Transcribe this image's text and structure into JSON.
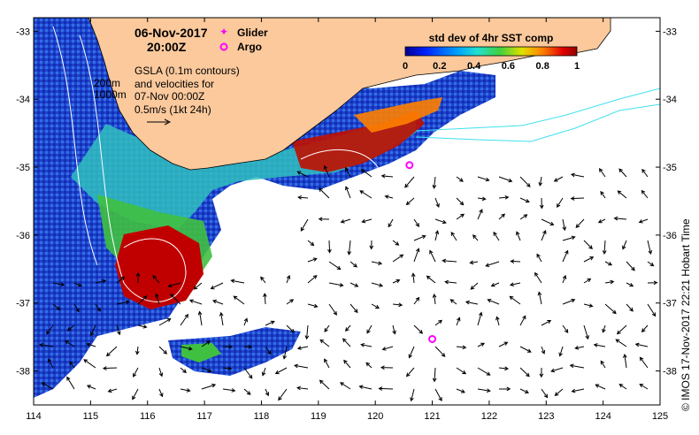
{
  "map": {
    "date_line": "06-Nov-2017",
    "time_line": "20:00Z",
    "legend_glider": "Glider",
    "legend_argo": "Argo",
    "gsla_lines": [
      "GSLA (0.1m contours)",
      "and velocities for",
      "07-Nov 00:00Z",
      "0.5m/s (1kt 24h)"
    ],
    "isobath_labels": [
      "200m",
      "1000m"
    ],
    "colorbar_title": "std dev of 4hr SST comp",
    "colorbar_ticks": [
      "0",
      "0.2",
      "0.4",
      "0.6",
      "0.8",
      "1"
    ],
    "x_ticks": [
      "114",
      "115",
      "116",
      "117",
      "118",
      "119",
      "120",
      "121",
      "122",
      "123",
      "124",
      "125"
    ],
    "y_ticks": [
      "-33",
      "-34",
      "-35",
      "-36",
      "-37",
      "-38"
    ],
    "credit": "© IMOS 17-Nov-2017 22:21 Hobart Time",
    "colors": {
      "land": "#fbc99c",
      "ocean": "#ffffff",
      "isobath": "#40e0f0",
      "marker": "#ff00ff"
    },
    "markers": [
      {
        "type": "argo",
        "lon": 120.6,
        "lat": -34.97
      },
      {
        "type": "argo",
        "lon": 121.0,
        "lat": -37.53
      }
    ]
  }
}
